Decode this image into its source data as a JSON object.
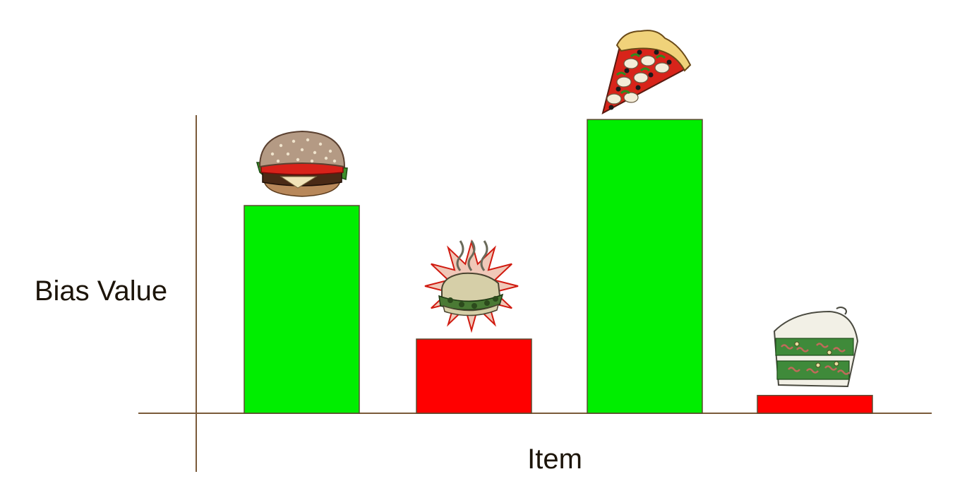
{
  "chart_data": {
    "type": "bar",
    "xlabel": "Item",
    "ylabel": "Bias Value",
    "ylim": [
      0,
      100
    ],
    "grid": false,
    "legend": "none",
    "categories": [
      "burger",
      "stinky-sandwich",
      "pizza",
      "rotten-cake"
    ],
    "values": [
      70,
      25,
      99,
      6
    ],
    "bar_colors": [
      "#00ee00",
      "#ff0000",
      "#00ee00",
      "#ff0000"
    ],
    "icons": [
      "burger-icon",
      "stinky-sandwich-icon",
      "pizza-icon",
      "rotten-cake-icon"
    ],
    "axis_color": "#7a5a3a"
  }
}
